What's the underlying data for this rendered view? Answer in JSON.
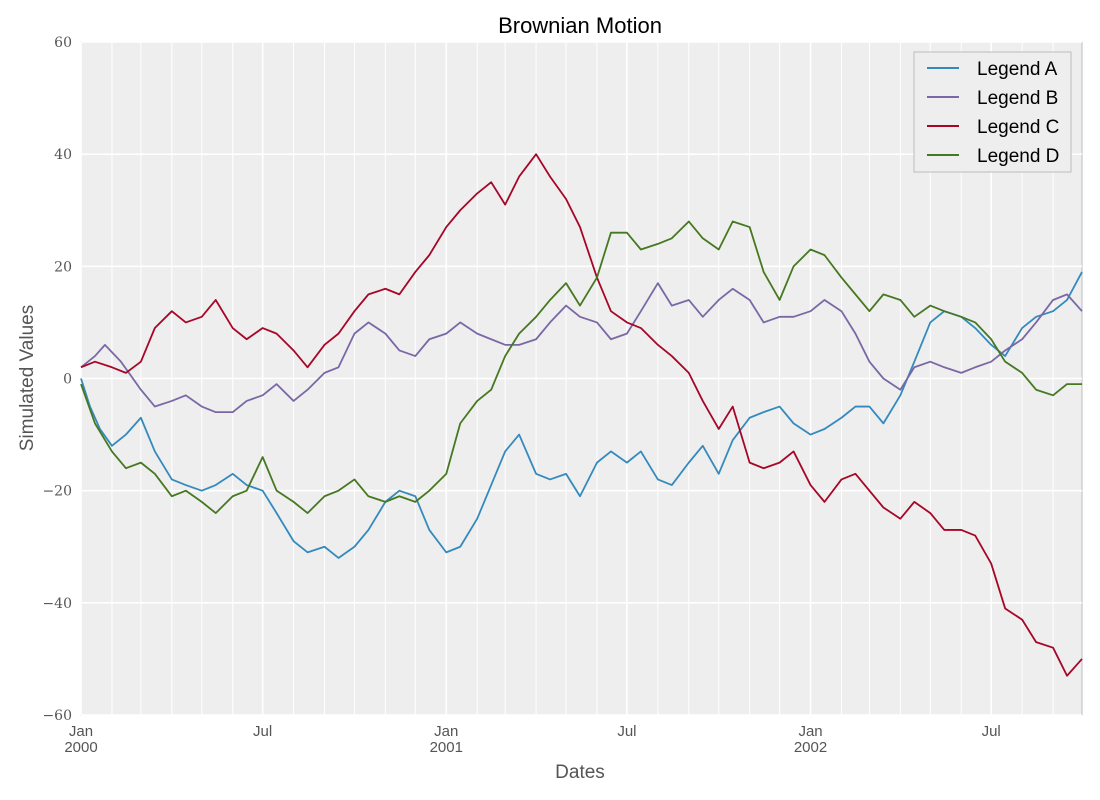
{
  "chart_data": {
    "type": "line",
    "title": "Brownian Motion",
    "xlabel": "Dates",
    "ylabel": "Simulated Values",
    "ylim": [
      -60,
      60
    ],
    "yticks": [
      60,
      40,
      20,
      0,
      -20,
      -40,
      -60
    ],
    "xlim": [
      "2000-01-01",
      "2002-09-30"
    ],
    "xticks": [
      {
        "date": "2000-01-01",
        "label": "Jan",
        "year": "2000"
      },
      {
        "date": "2000-07-01",
        "label": "Jul",
        "year": ""
      },
      {
        "date": "2001-01-01",
        "label": "Jan",
        "year": "2001"
      },
      {
        "date": "2001-07-01",
        "label": "Jul",
        "year": ""
      },
      {
        "date": "2002-01-01",
        "label": "Jan",
        "year": "2002"
      },
      {
        "date": "2002-07-01",
        "label": "Jul",
        "year": ""
      }
    ],
    "minor_gridlines_monthly": true,
    "grid": true,
    "legend_position": "top-right",
    "series": [
      {
        "name": "Legend A",
        "color": "#348ABD",
        "points": [
          [
            "2000-01-01",
            0
          ],
          [
            "2000-01-10",
            -5
          ],
          [
            "2000-01-20",
            -9
          ],
          [
            "2000-02-01",
            -12
          ],
          [
            "2000-02-15",
            -10
          ],
          [
            "2000-03-01",
            -7
          ],
          [
            "2000-03-15",
            -13
          ],
          [
            "2000-04-01",
            -18
          ],
          [
            "2000-04-15",
            -19
          ],
          [
            "2000-05-01",
            -20
          ],
          [
            "2000-05-15",
            -19
          ],
          [
            "2000-06-01",
            -17
          ],
          [
            "2000-06-15",
            -19
          ],
          [
            "2000-07-01",
            -20
          ],
          [
            "2000-07-15",
            -24
          ],
          [
            "2000-08-01",
            -29
          ],
          [
            "2000-08-15",
            -31
          ],
          [
            "2000-09-01",
            -30
          ],
          [
            "2000-09-15",
            -32
          ],
          [
            "2000-10-01",
            -30
          ],
          [
            "2000-10-15",
            -27
          ],
          [
            "2000-11-01",
            -22
          ],
          [
            "2000-11-15",
            -20
          ],
          [
            "2000-12-01",
            -21
          ],
          [
            "2000-12-15",
            -27
          ],
          [
            "2001-01-01",
            -31
          ],
          [
            "2001-01-15",
            -30
          ],
          [
            "2001-02-01",
            -25
          ],
          [
            "2001-02-15",
            -19
          ],
          [
            "2001-03-01",
            -13
          ],
          [
            "2001-03-15",
            -10
          ],
          [
            "2001-04-01",
            -17
          ],
          [
            "2001-04-15",
            -18
          ],
          [
            "2001-05-01",
            -17
          ],
          [
            "2001-05-15",
            -21
          ],
          [
            "2001-06-01",
            -15
          ],
          [
            "2001-06-15",
            -13
          ],
          [
            "2001-07-01",
            -15
          ],
          [
            "2001-07-15",
            -13
          ],
          [
            "2001-08-01",
            -18
          ],
          [
            "2001-08-15",
            -19
          ],
          [
            "2001-09-01",
            -15
          ],
          [
            "2001-09-15",
            -12
          ],
          [
            "2001-10-01",
            -17
          ],
          [
            "2001-10-15",
            -11
          ],
          [
            "2001-11-01",
            -7
          ],
          [
            "2001-11-15",
            -6
          ],
          [
            "2001-12-01",
            -5
          ],
          [
            "2001-12-15",
            -8
          ],
          [
            "2002-01-01",
            -10
          ],
          [
            "2002-01-15",
            -9
          ],
          [
            "2002-02-01",
            -7
          ],
          [
            "2002-02-15",
            -5
          ],
          [
            "2002-03-01",
            -5
          ],
          [
            "2002-03-15",
            -8
          ],
          [
            "2002-04-01",
            -3
          ],
          [
            "2002-04-15",
            3
          ],
          [
            "2002-05-01",
            10
          ],
          [
            "2002-05-15",
            12
          ],
          [
            "2002-06-01",
            11
          ],
          [
            "2002-06-15",
            9
          ],
          [
            "2002-07-01",
            6
          ],
          [
            "2002-07-15",
            4
          ],
          [
            "2002-08-01",
            9
          ],
          [
            "2002-08-15",
            11
          ],
          [
            "2002-09-01",
            12
          ],
          [
            "2002-09-15",
            14
          ],
          [
            "2002-09-30",
            19
          ]
        ]
      },
      {
        "name": "Legend B",
        "color": "#7A68A6",
        "points": [
          [
            "2000-01-01",
            2
          ],
          [
            "2000-01-15",
            4
          ],
          [
            "2000-01-25",
            6
          ],
          [
            "2000-02-10",
            3
          ],
          [
            "2000-03-01",
            -2
          ],
          [
            "2000-03-15",
            -5
          ],
          [
            "2000-04-01",
            -4
          ],
          [
            "2000-04-15",
            -3
          ],
          [
            "2000-05-01",
            -5
          ],
          [
            "2000-05-15",
            -6
          ],
          [
            "2000-06-01",
            -6
          ],
          [
            "2000-06-15",
            -4
          ],
          [
            "2000-07-01",
            -3
          ],
          [
            "2000-07-15",
            -1
          ],
          [
            "2000-08-01",
            -4
          ],
          [
            "2000-08-15",
            -2
          ],
          [
            "2000-09-01",
            1
          ],
          [
            "2000-09-15",
            2
          ],
          [
            "2000-10-01",
            8
          ],
          [
            "2000-10-15",
            10
          ],
          [
            "2000-11-01",
            8
          ],
          [
            "2000-11-15",
            5
          ],
          [
            "2000-12-01",
            4
          ],
          [
            "2000-12-15",
            7
          ],
          [
            "2001-01-01",
            8
          ],
          [
            "2001-01-15",
            10
          ],
          [
            "2001-02-01",
            8
          ],
          [
            "2001-02-15",
            7
          ],
          [
            "2001-03-01",
            6
          ],
          [
            "2001-03-15",
            6
          ],
          [
            "2001-04-01",
            7
          ],
          [
            "2001-04-15",
            10
          ],
          [
            "2001-05-01",
            13
          ],
          [
            "2001-05-15",
            11
          ],
          [
            "2001-06-01",
            10
          ],
          [
            "2001-06-15",
            7
          ],
          [
            "2001-07-01",
            8
          ],
          [
            "2001-07-15",
            12
          ],
          [
            "2001-08-01",
            17
          ],
          [
            "2001-08-15",
            13
          ],
          [
            "2001-09-01",
            14
          ],
          [
            "2001-09-15",
            11
          ],
          [
            "2001-10-01",
            14
          ],
          [
            "2001-10-15",
            16
          ],
          [
            "2001-11-01",
            14
          ],
          [
            "2001-11-15",
            10
          ],
          [
            "2001-12-01",
            11
          ],
          [
            "2001-12-15",
            11
          ],
          [
            "2002-01-01",
            12
          ],
          [
            "2002-01-15",
            14
          ],
          [
            "2002-02-01",
            12
          ],
          [
            "2002-02-15",
            8
          ],
          [
            "2002-03-01",
            3
          ],
          [
            "2002-03-15",
            0
          ],
          [
            "2002-04-01",
            -2
          ],
          [
            "2002-04-15",
            2
          ],
          [
            "2002-05-01",
            3
          ],
          [
            "2002-05-15",
            2
          ],
          [
            "2002-06-01",
            1
          ],
          [
            "2002-06-15",
            2
          ],
          [
            "2002-07-01",
            3
          ],
          [
            "2002-07-15",
            5
          ],
          [
            "2002-08-01",
            7
          ],
          [
            "2002-08-15",
            10
          ],
          [
            "2002-09-01",
            14
          ],
          [
            "2002-09-15",
            15
          ],
          [
            "2002-09-30",
            12
          ]
        ]
      },
      {
        "name": "Legend C",
        "color": "#A60628",
        "points": [
          [
            "2000-01-01",
            2
          ],
          [
            "2000-01-15",
            3
          ],
          [
            "2000-02-01",
            2
          ],
          [
            "2000-02-15",
            1
          ],
          [
            "2000-03-01",
            3
          ],
          [
            "2000-03-15",
            9
          ],
          [
            "2000-04-01",
            12
          ],
          [
            "2000-04-15",
            10
          ],
          [
            "2000-05-01",
            11
          ],
          [
            "2000-05-15",
            14
          ],
          [
            "2000-06-01",
            9
          ],
          [
            "2000-06-15",
            7
          ],
          [
            "2000-07-01",
            9
          ],
          [
            "2000-07-15",
            8
          ],
          [
            "2000-08-01",
            5
          ],
          [
            "2000-08-15",
            2
          ],
          [
            "2000-09-01",
            6
          ],
          [
            "2000-09-15",
            8
          ],
          [
            "2000-10-01",
            12
          ],
          [
            "2000-10-15",
            15
          ],
          [
            "2000-11-01",
            16
          ],
          [
            "2000-11-15",
            15
          ],
          [
            "2000-12-01",
            19
          ],
          [
            "2000-12-15",
            22
          ],
          [
            "2001-01-01",
            27
          ],
          [
            "2001-01-15",
            30
          ],
          [
            "2001-02-01",
            33
          ],
          [
            "2001-02-15",
            35
          ],
          [
            "2001-03-01",
            31
          ],
          [
            "2001-03-15",
            36
          ],
          [
            "2001-04-01",
            40
          ],
          [
            "2001-04-15",
            36
          ],
          [
            "2001-05-01",
            32
          ],
          [
            "2001-05-15",
            27
          ],
          [
            "2001-06-01",
            18
          ],
          [
            "2001-06-15",
            12
          ],
          [
            "2001-07-01",
            10
          ],
          [
            "2001-07-15",
            9
          ],
          [
            "2001-08-01",
            6
          ],
          [
            "2001-08-15",
            4
          ],
          [
            "2001-09-01",
            1
          ],
          [
            "2001-09-15",
            -4
          ],
          [
            "2001-10-01",
            -9
          ],
          [
            "2001-10-15",
            -5
          ],
          [
            "2001-11-01",
            -15
          ],
          [
            "2001-11-15",
            -16
          ],
          [
            "2001-12-01",
            -15
          ],
          [
            "2001-12-15",
            -13
          ],
          [
            "2002-01-01",
            -19
          ],
          [
            "2002-01-15",
            -22
          ],
          [
            "2002-02-01",
            -18
          ],
          [
            "2002-02-15",
            -17
          ],
          [
            "2002-03-01",
            -20
          ],
          [
            "2002-03-15",
            -23
          ],
          [
            "2002-04-01",
            -25
          ],
          [
            "2002-04-15",
            -22
          ],
          [
            "2002-05-01",
            -24
          ],
          [
            "2002-05-15",
            -27
          ],
          [
            "2002-06-01",
            -27
          ],
          [
            "2002-06-15",
            -28
          ],
          [
            "2002-07-01",
            -33
          ],
          [
            "2002-07-15",
            -41
          ],
          [
            "2002-08-01",
            -43
          ],
          [
            "2002-08-15",
            -47
          ],
          [
            "2002-09-01",
            -48
          ],
          [
            "2002-09-15",
            -53
          ],
          [
            "2002-09-30",
            -50
          ]
        ]
      },
      {
        "name": "Legend D",
        "color": "#467821",
        "points": [
          [
            "2000-01-01",
            -1
          ],
          [
            "2000-01-15",
            -8
          ],
          [
            "2000-02-01",
            -13
          ],
          [
            "2000-02-15",
            -16
          ],
          [
            "2000-03-01",
            -15
          ],
          [
            "2000-03-15",
            -17
          ],
          [
            "2000-04-01",
            -21
          ],
          [
            "2000-04-15",
            -20
          ],
          [
            "2000-05-01",
            -22
          ],
          [
            "2000-05-15",
            -24
          ],
          [
            "2000-06-01",
            -21
          ],
          [
            "2000-06-15",
            -20
          ],
          [
            "2000-07-01",
            -14
          ],
          [
            "2000-07-15",
            -20
          ],
          [
            "2000-08-01",
            -22
          ],
          [
            "2000-08-15",
            -24
          ],
          [
            "2000-09-01",
            -21
          ],
          [
            "2000-09-15",
            -20
          ],
          [
            "2000-10-01",
            -18
          ],
          [
            "2000-10-15",
            -21
          ],
          [
            "2000-11-01",
            -22
          ],
          [
            "2000-11-15",
            -21
          ],
          [
            "2000-12-01",
            -22
          ],
          [
            "2000-12-15",
            -20
          ],
          [
            "2001-01-01",
            -17
          ],
          [
            "2001-01-15",
            -8
          ],
          [
            "2001-02-01",
            -4
          ],
          [
            "2001-02-15",
            -2
          ],
          [
            "2001-03-01",
            4
          ],
          [
            "2001-03-15",
            8
          ],
          [
            "2001-04-01",
            11
          ],
          [
            "2001-04-15",
            14
          ],
          [
            "2001-05-01",
            17
          ],
          [
            "2001-05-15",
            13
          ],
          [
            "2001-06-01",
            18
          ],
          [
            "2001-06-15",
            26
          ],
          [
            "2001-07-01",
            26
          ],
          [
            "2001-07-15",
            23
          ],
          [
            "2001-08-01",
            24
          ],
          [
            "2001-08-15",
            25
          ],
          [
            "2001-09-01",
            28
          ],
          [
            "2001-09-15",
            25
          ],
          [
            "2001-10-01",
            23
          ],
          [
            "2001-10-15",
            28
          ],
          [
            "2001-11-01",
            27
          ],
          [
            "2001-11-15",
            19
          ],
          [
            "2001-12-01",
            14
          ],
          [
            "2001-12-15",
            20
          ],
          [
            "2002-01-01",
            23
          ],
          [
            "2002-01-15",
            22
          ],
          [
            "2002-02-01",
            18
          ],
          [
            "2002-02-15",
            15
          ],
          [
            "2002-03-01",
            12
          ],
          [
            "2002-03-15",
            15
          ],
          [
            "2002-04-01",
            14
          ],
          [
            "2002-04-15",
            11
          ],
          [
            "2002-05-01",
            13
          ],
          [
            "2002-05-15",
            12
          ],
          [
            "2002-06-01",
            11
          ],
          [
            "2002-06-15",
            10
          ],
          [
            "2002-07-01",
            7
          ],
          [
            "2002-07-15",
            3
          ],
          [
            "2002-08-01",
            1
          ],
          [
            "2002-08-15",
            -2
          ],
          [
            "2002-09-01",
            -3
          ],
          [
            "2002-09-15",
            -1
          ],
          [
            "2002-09-30",
            -1
          ]
        ]
      }
    ]
  }
}
